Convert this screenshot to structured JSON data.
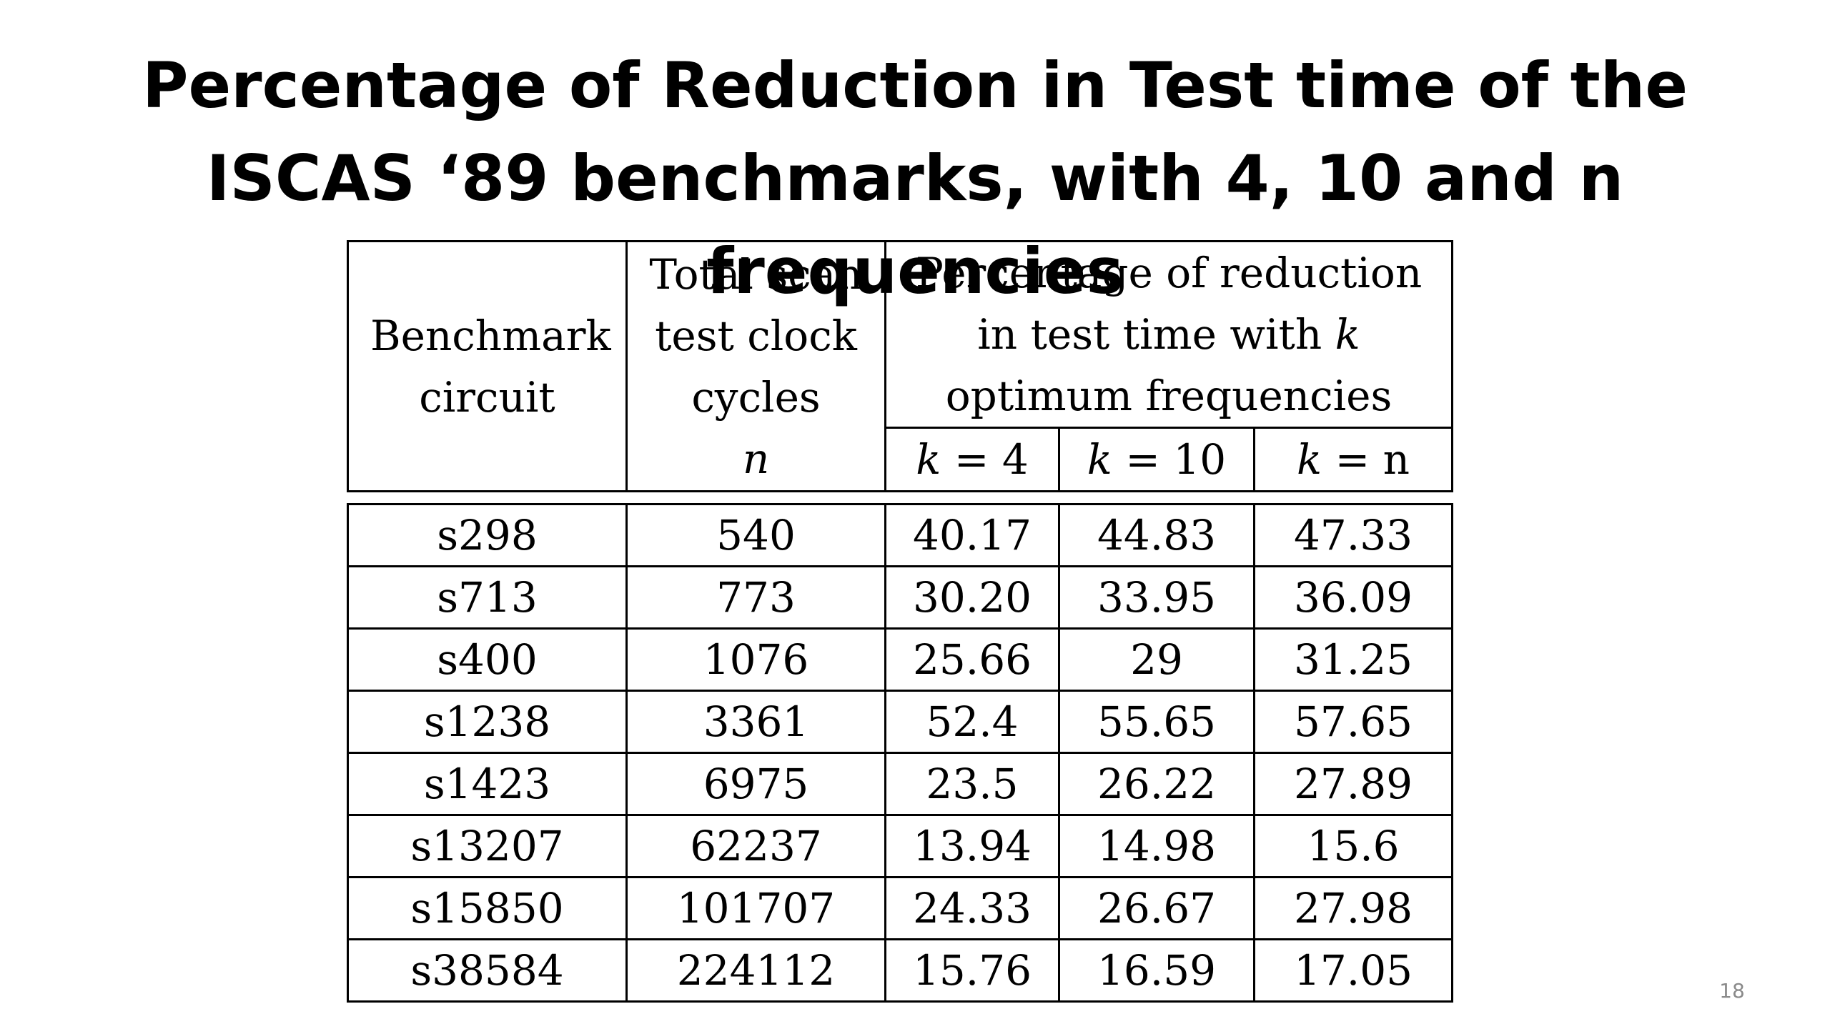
{
  "title": {
    "line1": "Percentage of Reduction in Test time of the",
    "line2": "ISCAS ‘89 benchmarks, with 4, 10 and n frequencies"
  },
  "table": {
    "header": {
      "col1": "Benchmark circuit",
      "col2_text": "Total scan test clock cycles",
      "col2_var": "n",
      "group_pre": "Percentage of reduction in test time with",
      "group_var": "k",
      "group_post": "optimum frequencies",
      "sub": [
        {
          "var": "k",
          "eq": " = 4"
        },
        {
          "var": "k",
          "eq": " = 10"
        },
        {
          "var": "k",
          "eq": " = n"
        }
      ]
    },
    "rows": [
      [
        "s298",
        "540",
        "40.17",
        "44.83",
        "47.33"
      ],
      [
        "s713",
        "773",
        "30.20",
        "33.95",
        "36.09"
      ],
      [
        "s400",
        "1076",
        "25.66",
        "29",
        "31.25"
      ],
      [
        "s1238",
        "3361",
        "52.4",
        "55.65",
        "57.65"
      ],
      [
        "s1423",
        "6975",
        "23.5",
        "26.22",
        "27.89"
      ],
      [
        "s13207",
        "62237",
        "13.94",
        "14.98",
        "15.6"
      ],
      [
        "s15850",
        "101707",
        "24.33",
        "26.67",
        "27.98"
      ],
      [
        "s38584",
        "224112",
        "15.76",
        "16.59",
        "17.05"
      ]
    ]
  },
  "page_number": "18"
}
